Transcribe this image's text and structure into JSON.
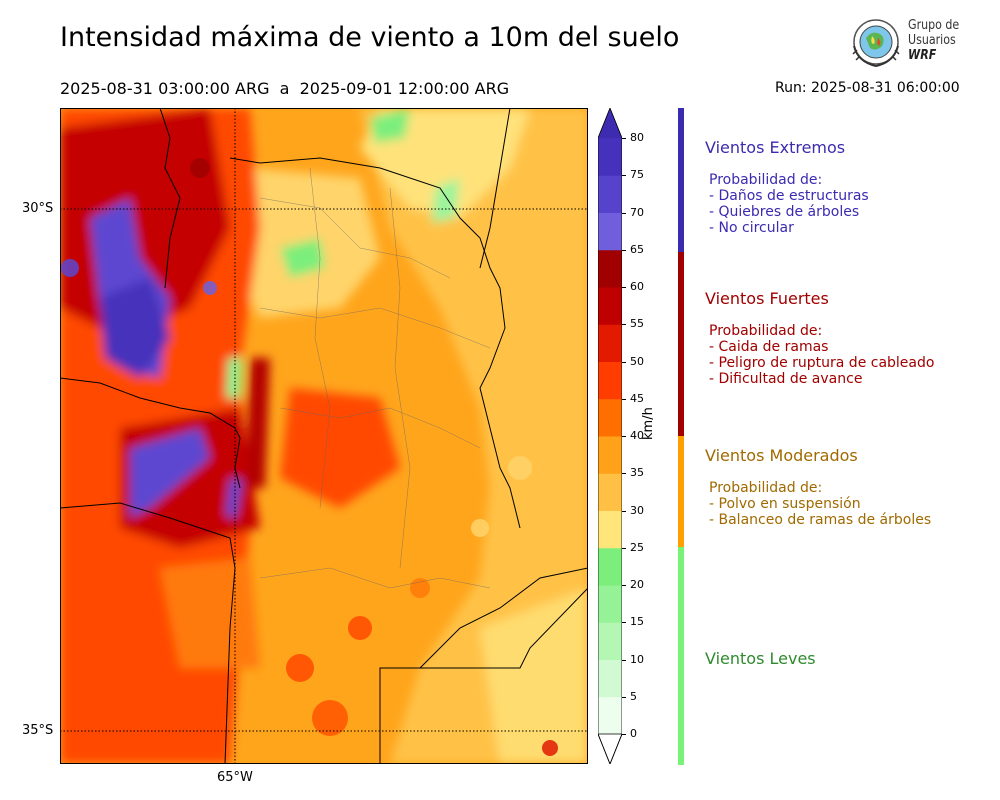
{
  "title": "Intensidad máxima de viento a 10m del suelo",
  "period": "2025-08-31 03:00:00 ARG  a  2025-09-01 12:00:00 ARG",
  "run": "Run: 2025-08-31 06:00:00",
  "logo": {
    "line1": "Grupo de",
    "line2": "Usuarios",
    "line3": "WRF"
  },
  "map": {
    "lat_labels": [
      "30°S",
      "35°S"
    ],
    "lon_labels": [
      "65°W"
    ]
  },
  "colorbar": {
    "units": "km/h",
    "ticks": [
      "0",
      "5",
      "10",
      "15",
      "20",
      "25",
      "30",
      "35",
      "40",
      "45",
      "50",
      "55",
      "60",
      "65",
      "70",
      "75",
      "80"
    ],
    "colors": [
      "#eefeee",
      "#d2fad2",
      "#b4f7b4",
      "#96f296",
      "#7cee7c",
      "#ffe57a",
      "#ffc045",
      "#ffa21a",
      "#ff6f00",
      "#ff3d00",
      "#e11a00",
      "#bf0000",
      "#a00000",
      "#6f5fdc",
      "#5543cc",
      "#4531bb"
    ],
    "under_color": "#ffffff",
    "over_color": "#3d2bb0"
  },
  "categories": [
    {
      "title": "Vientos Extremos",
      "color": "#3a2bb0",
      "lines": [
        "Probabilidad de:",
        "- Daños de estructuras",
        "- Quiebres de árboles",
        "- No circular"
      ]
    },
    {
      "title": "Vientos Fuertes",
      "color": "#a00000",
      "lines": [
        "Probabilidad de:",
        "- Caida de ramas",
        "- Peligro de ruptura de cableado",
        "- Dificultad de avance"
      ]
    },
    {
      "title": "Vientos Moderados",
      "color": "#a06a00",
      "bar_color": "#ff9f00",
      "lines": [
        "Probabilidad de:",
        "- Polvo en suspensión",
        "- Balanceo de ramas de árboles"
      ]
    },
    {
      "title": "Vientos Leves",
      "color": "#2e8b2e",
      "bar_color": "#77f377",
      "lines": []
    }
  ]
}
